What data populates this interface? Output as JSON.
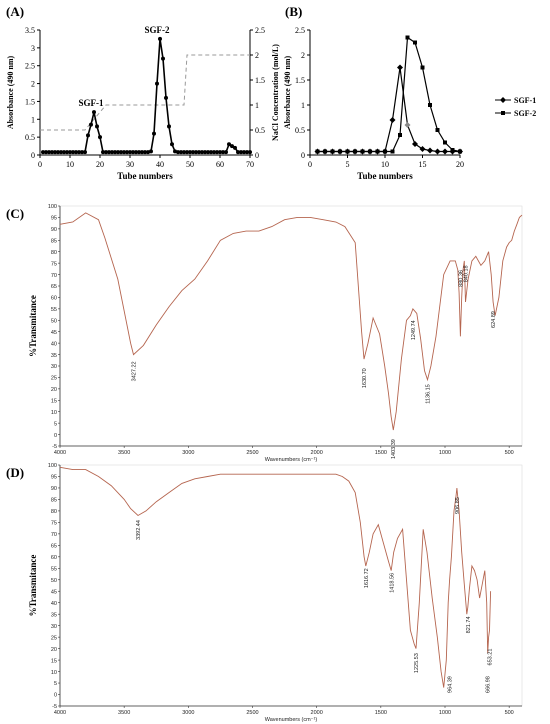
{
  "chart_data": [
    {
      "panel": "(A)",
      "type": "line",
      "xlabel": "Tube numbers",
      "ylabel_left": "Absorbance (490 nm)",
      "ylabel_right": "NaCl Concentration (mol/L)",
      "xlim": [
        0,
        70
      ],
      "ylim_left": [
        0,
        3.5
      ],
      "ylim_right": [
        0,
        2.5
      ],
      "xticks": [
        "0",
        "10",
        "20",
        "30",
        "40",
        "50",
        "60",
        "70"
      ],
      "yticks_left": [
        "0",
        "0.5",
        "1",
        "1.5",
        "2",
        "2.5",
        "3",
        "3.5"
      ],
      "yticks_right": [
        "0",
        "0.5",
        "1",
        "1.5",
        "2",
        "2.5"
      ],
      "peak_labels": [
        {
          "text": "SGF-1",
          "x": 17,
          "y": 1.2
        },
        {
          "text": "SGF-2",
          "x": 39,
          "y": 3.25
        }
      ],
      "absorbance": {
        "x": [
          1,
          2,
          3,
          4,
          5,
          6,
          7,
          8,
          9,
          10,
          11,
          12,
          13,
          14,
          15,
          16,
          17,
          18,
          19,
          20,
          21,
          22,
          23,
          24,
          25,
          26,
          27,
          28,
          29,
          30,
          31,
          32,
          33,
          34,
          35,
          36,
          37,
          38,
          39,
          40,
          41,
          42,
          43,
          44,
          45,
          46,
          47,
          48,
          49,
          50,
          51,
          52,
          53,
          54,
          55,
          56,
          57,
          58,
          59,
          60,
          61,
          62,
          63,
          64,
          65,
          66,
          67,
          68,
          69,
          70
        ],
        "y": [
          0.08,
          0.08,
          0.08,
          0.08,
          0.08,
          0.08,
          0.08,
          0.08,
          0.08,
          0.08,
          0.08,
          0.08,
          0.08,
          0.08,
          0.08,
          0.55,
          0.85,
          1.2,
          0.8,
          0.5,
          0.08,
          0.08,
          0.08,
          0.08,
          0.08,
          0.08,
          0.08,
          0.08,
          0.08,
          0.08,
          0.08,
          0.08,
          0.08,
          0.08,
          0.08,
          0.08,
          0.1,
          0.6,
          2.0,
          3.25,
          2.7,
          1.6,
          0.8,
          0.3,
          0.1,
          0.08,
          0.08,
          0.08,
          0.08,
          0.08,
          0.08,
          0.08,
          0.08,
          0.08,
          0.08,
          0.08,
          0.08,
          0.08,
          0.08,
          0.08,
          0.08,
          0.08,
          0.3,
          0.25,
          0.2,
          0.08,
          0.08,
          0.08,
          0.08,
          0.08
        ]
      },
      "nacl_gradient": {
        "x": [
          0,
          15,
          22,
          30,
          48,
          49,
          70
        ],
        "y": [
          0.5,
          0.5,
          1.0,
          1.0,
          1.0,
          2.0,
          2.0
        ]
      }
    },
    {
      "panel": "(B)",
      "type": "line",
      "xlabel": "Tube numbers",
      "ylabel": "Absorbance (490 nm)",
      "xlim": [
        0,
        20
      ],
      "ylim": [
        0,
        2.5
      ],
      "xticks": [
        "0",
        "5",
        "10",
        "15",
        "20"
      ],
      "yticks": [
        "0",
        "0.5",
        "1",
        "1.5",
        "2",
        "2.5"
      ],
      "legend_position": "right",
      "series": [
        {
          "name": "SGF-1",
          "marker": "diamond",
          "x": [
            1,
            2,
            3,
            4,
            5,
            6,
            7,
            8,
            9,
            10,
            11,
            12,
            13,
            14,
            15,
            16,
            17,
            18,
            19,
            20
          ],
          "y": [
            0.07,
            0.07,
            0.07,
            0.07,
            0.07,
            0.07,
            0.07,
            0.07,
            0.07,
            0.07,
            0.7,
            1.75,
            0.6,
            0.22,
            0.12,
            0.09,
            0.07,
            0.07,
            0.07,
            0.07
          ]
        },
        {
          "name": "SGF-2",
          "marker": "square",
          "x": [
            1,
            2,
            3,
            4,
            5,
            6,
            7,
            8,
            9,
            10,
            11,
            12,
            13,
            14,
            15,
            16,
            17,
            18,
            19,
            20
          ],
          "y": [
            0.07,
            0.07,
            0.07,
            0.07,
            0.07,
            0.07,
            0.07,
            0.07,
            0.07,
            0.07,
            0.07,
            0.4,
            2.35,
            2.25,
            1.75,
            1.0,
            0.5,
            0.25,
            0.1,
            0.07
          ]
        }
      ]
    },
    {
      "panel": "(C)",
      "type": "line",
      "ylabel": "%Transmitance",
      "xlabel": "Wavenumbers (cm⁻¹)",
      "xlim": [
        4000,
        400
      ],
      "ylim": [
        -5,
        100
      ],
      "xticks": [
        "4000",
        "3500",
        "3000",
        "2500",
        "2000",
        "1500",
        "1000",
        "500"
      ],
      "yticks": [
        "100",
        "95",
        "90",
        "85",
        "80",
        "75",
        "70",
        "65",
        "60",
        "55",
        "50",
        "45",
        "40",
        "35",
        "30",
        "25",
        "20",
        "15",
        "10",
        "5",
        "0",
        "-5"
      ],
      "peak_labels": [
        "3427.22",
        "1630.70",
        "1403.39",
        "1249.74",
        "1136.15",
        "880.36",
        "840.18",
        "624.89"
      ],
      "spectrum": {
        "x": [
          4000,
          3900,
          3800,
          3700,
          3650,
          3550,
          3450,
          3427,
          3350,
          3250,
          3150,
          3050,
          2950,
          2850,
          2750,
          2650,
          2550,
          2450,
          2350,
          2250,
          2150,
          2050,
          1950,
          1850,
          1780,
          1700,
          1650,
          1631,
          1600,
          1560,
          1510,
          1470,
          1440,
          1420,
          1403,
          1380,
          1340,
          1300,
          1270,
          1250,
          1220,
          1190,
          1160,
          1136,
          1110,
          1070,
          1010,
          960,
          920,
          900,
          890,
          880,
          870,
          860,
          850,
          840,
          820,
          790,
          760,
          720,
          690,
          660,
          640,
          625,
          610,
          580,
          550,
          520,
          500,
          480,
          460,
          440,
          420,
          400
        ],
        "y": [
          92,
          93,
          97,
          94,
          86,
          68,
          40,
          35,
          39,
          48,
          56,
          63,
          68,
          76,
          85,
          88,
          89,
          89,
          91,
          94,
          95,
          95,
          94,
          93,
          91,
          84,
          45,
          33,
          40,
          51,
          44,
          30,
          18,
          8,
          2,
          10,
          33,
          50,
          52,
          55,
          53,
          42,
          28,
          24,
          30,
          43,
          70,
          76,
          76,
          72,
          62,
          43,
          60,
          72,
          76,
          58,
          68,
          76,
          78,
          74,
          76,
          80,
          70,
          58,
          52,
          60,
          76,
          82,
          84,
          85,
          89,
          92,
          95,
          96
        ]
      }
    },
    {
      "panel": "(D)",
      "type": "line",
      "ylabel": "%Transmitance",
      "xlabel": "Wavenumbers (cm⁻¹)",
      "xlim": [
        4000,
        400
      ],
      "ylim": [
        -5,
        100
      ],
      "xticks": [
        "4000",
        "3500",
        "3000",
        "2500",
        "2000",
        "1500",
        "1000",
        "500"
      ],
      "yticks": [
        "100",
        "95",
        "90",
        "85",
        "80",
        "75",
        "70",
        "65",
        "60",
        "55",
        "50",
        "45",
        "40",
        "35",
        "30",
        "25",
        "20",
        "15",
        "10",
        "5",
        "0",
        "-5"
      ],
      "peak_labels": [
        "3392.44",
        "1616.72",
        "1418.56",
        "1225.53",
        "964.39",
        "906.85",
        "821.74",
        "666.98",
        "653.21"
      ],
      "spectrum": {
        "x": [
          4000,
          3900,
          3800,
          3700,
          3600,
          3500,
          3450,
          3392,
          3330,
          3250,
          3150,
          3050,
          2950,
          2850,
          2750,
          2650,
          2550,
          2450,
          2350,
          2250,
          2150,
          2050,
          1950,
          1850,
          1800,
          1750,
          1700,
          1660,
          1630,
          1617,
          1590,
          1560,
          1520,
          1480,
          1440,
          1419,
          1400,
          1370,
          1330,
          1300,
          1270,
          1240,
          1226,
          1200,
          1170,
          1140,
          1100,
          1060,
          1030,
          1010,
          990,
          975,
          964,
          950,
          930,
          915,
          907,
          890,
          870,
          850,
          830,
          822,
          810,
          790,
          770,
          750,
          730,
          710,
          690,
          675,
          667,
          660,
          653,
          645
        ]
      }
    }
  ],
  "legend_b": {
    "sgf1": "SGF-1",
    "sgf2": "SGF-2"
  },
  "panel_labels": {
    "a": "(A)",
    "b": "(B)",
    "c": "(C)",
    "d": "(D)"
  }
}
